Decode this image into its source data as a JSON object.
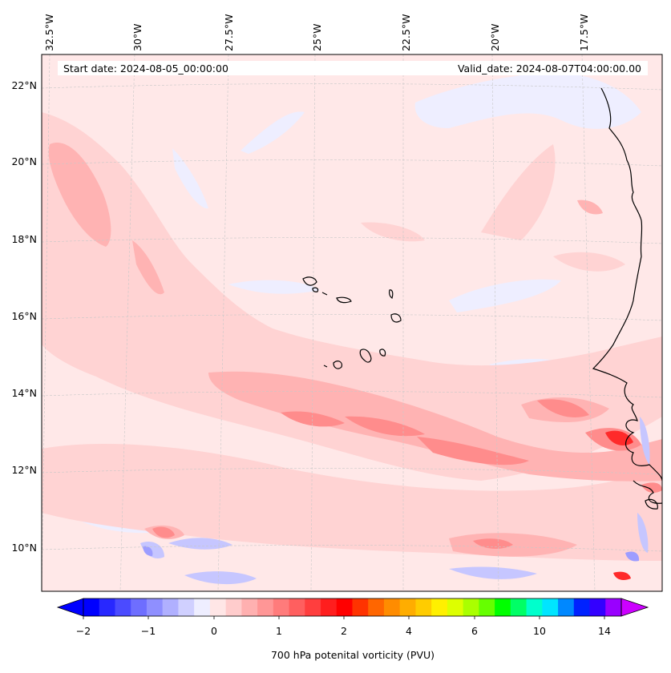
{
  "map": {
    "start_date": "Start date: 2024-08-05_00:00:00",
    "valid_date": "Valid_date: 2024-08-07T04:00:00.00",
    "lon_labels": [
      "32.5°W",
      "30°W",
      "27.5°W",
      "25°W",
      "22.5°W",
      "20°W",
      "17.5°W"
    ],
    "lat_labels": [
      "22°N",
      "20°N",
      "18°N",
      "16°N",
      "14°N",
      "12°N",
      "10°N"
    ],
    "colorbar": {
      "label": "700 hPa potenital vorticity (PVU)",
      "ticks": [
        "−2",
        "−1",
        "0",
        "1",
        "2",
        "4",
        "6",
        "10",
        "14"
      ],
      "colors": [
        "#0000ff",
        "#2828ff",
        "#4b4bff",
        "#6e6eff",
        "#8f8fff",
        "#b0b0ff",
        "#d0d0ff",
        "#eeeeff",
        "#ffe6e6",
        "#ffcccc",
        "#ffb0b0",
        "#ff9696",
        "#ff7b7b",
        "#ff5f5f",
        "#ff3e3e",
        "#ff1e1e",
        "#ff0000",
        "#ff3300",
        "#ff6600",
        "#ff8c00",
        "#ffad00",
        "#ffcc00",
        "#fff000",
        "#ddff00",
        "#aaff00",
        "#66ff00",
        "#00ff00",
        "#00ff66",
        "#00ffcc",
        "#00e5ff",
        "#0088ff",
        "#0022ff",
        "#3300ff",
        "#9900ff"
      ],
      "extend_low_color": "#0000ff",
      "extend_high_color": "#cc00ff"
    },
    "field_colors": {
      "background": "#ffe8e8",
      "light_pink": "#ffd3d3",
      "pink": "#ffb3b3",
      "medium_red": "#ff8c8c",
      "red": "#ff5c5c",
      "strong_red": "#ff2a2a",
      "light_blue": "#eeeeff",
      "blue": "#c6c6ff",
      "medium_blue": "#9d9dff",
      "coastline": "#000000"
    }
  }
}
